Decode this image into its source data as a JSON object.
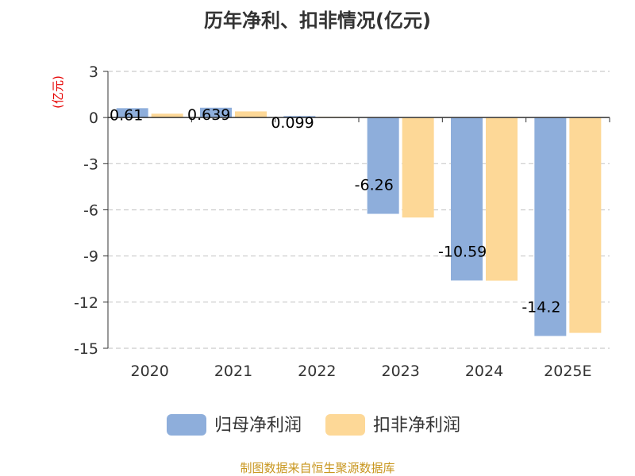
{
  "chart_data": {
    "type": "bar",
    "title": "历年净利、扣非情况(亿元)",
    "ylabel": "(亿元)",
    "categories": [
      "2020",
      "2021",
      "2022",
      "2023",
      "2024",
      "2025E"
    ],
    "series": [
      {
        "name": "归母净利润",
        "color": "#8eaedb",
        "values": [
          0.61,
          0.639,
          0.099,
          -6.26,
          -10.59,
          -14.2
        ],
        "labels": [
          "0.61",
          "0.639",
          "0.099",
          "-6.26",
          "-10.59",
          "-14.2"
        ]
      },
      {
        "name": "扣非净利润",
        "color": "#fdd897",
        "values": [
          0.25,
          0.4,
          0.05,
          -6.5,
          -10.6,
          -14.0
        ]
      }
    ],
    "ylim": [
      -15,
      3
    ],
    "yticks": [
      3,
      0,
      -3,
      -6,
      -9,
      -12,
      -15
    ],
    "ytick_labels": [
      "3",
      "0",
      "-3",
      "-6",
      "-9",
      "-12",
      "-15"
    ],
    "grid": true,
    "legend_position": "bottom"
  },
  "source": "制图数据来自恒生聚源数据库"
}
